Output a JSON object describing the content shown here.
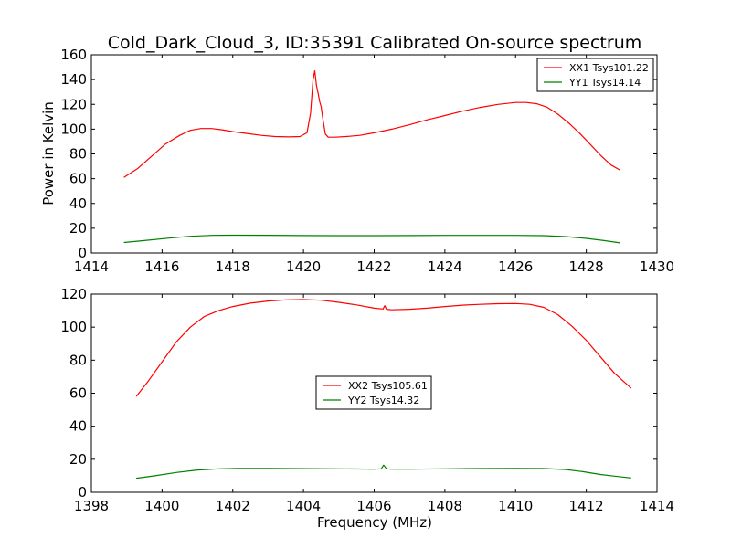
{
  "chart_data": [
    {
      "type": "line",
      "title": "Cold_Dark_Cloud_3, ID:35391 Calibrated On-source spectrum",
      "xlabel": "",
      "ylabel": "Power in Kelvin",
      "xlim": [
        1414,
        1430
      ],
      "ylim": [
        0,
        160
      ],
      "xticks": [
        "1414",
        "1416",
        "1418",
        "1420",
        "1422",
        "1424",
        "1426",
        "1428",
        "1430"
      ],
      "yticks": [
        "0",
        "20",
        "40",
        "60",
        "80",
        "100",
        "120",
        "140",
        "160"
      ],
      "grid": false,
      "legend_position": "upper-right",
      "series": [
        {
          "name": "XX1 Tsys101.22",
          "color": "#ff0000",
          "x": [
            1414.92,
            1415.3,
            1415.7,
            1416.1,
            1416.5,
            1416.8,
            1417.1,
            1417.4,
            1417.7,
            1418.0,
            1418.4,
            1418.8,
            1419.2,
            1419.6,
            1419.9,
            1420.1,
            1420.2,
            1420.27,
            1420.32,
            1420.37,
            1420.42,
            1420.46,
            1420.5,
            1420.55,
            1420.62,
            1420.7,
            1420.9,
            1421.2,
            1421.6,
            1422.0,
            1422.5,
            1423.0,
            1423.5,
            1424.0,
            1424.5,
            1425.0,
            1425.5,
            1426.0,
            1426.3,
            1426.6,
            1426.9,
            1427.2,
            1427.5,
            1427.8,
            1428.1,
            1428.4,
            1428.7,
            1428.95
          ],
          "y": [
            61,
            68,
            78,
            88,
            95,
            99,
            100.5,
            100.5,
            99.5,
            98,
            96.5,
            95,
            94,
            93.7,
            94,
            97,
            113,
            140,
            147,
            135,
            128,
            122,
            118,
            108,
            96,
            93.5,
            93.5,
            94,
            95,
            97,
            100,
            103.5,
            107.5,
            111,
            114.5,
            117.5,
            120,
            121.5,
            121.5,
            120.5,
            117.5,
            112,
            105,
            97,
            88,
            79,
            71,
            67
          ]
        },
        {
          "name": "YY1 Tsys14.14",
          "color": "#008000",
          "x": [
            1414.92,
            1415.5,
            1416.2,
            1416.8,
            1417.4,
            1418.0,
            1419.0,
            1420.0,
            1421.0,
            1422.0,
            1423.0,
            1424.0,
            1425.0,
            1426.0,
            1426.8,
            1427.4,
            1428.0,
            1428.5,
            1428.95
          ],
          "y": [
            8.5,
            10,
            12,
            13.5,
            14.2,
            14.4,
            14.3,
            14.1,
            14,
            14,
            14.1,
            14.2,
            14.2,
            14.2,
            14,
            13.3,
            11.8,
            10,
            8.2
          ]
        }
      ]
    },
    {
      "type": "line",
      "title": "",
      "xlabel": "Frequency (MHz)",
      "ylabel": "",
      "xlim": [
        1398,
        1414
      ],
      "ylim": [
        0,
        120
      ],
      "xticks": [
        "1398",
        "1400",
        "1402",
        "1404",
        "1406",
        "1408",
        "1410",
        "1412",
        "1414"
      ],
      "yticks": [
        "0",
        "20",
        "40",
        "60",
        "80",
        "100",
        "120"
      ],
      "grid": false,
      "legend_position": "center",
      "series": [
        {
          "name": "XX2 Tsys105.61",
          "color": "#ff0000",
          "x": [
            1399.27,
            1399.6,
            1400.0,
            1400.4,
            1400.8,
            1401.2,
            1401.6,
            1402.0,
            1402.5,
            1403.0,
            1403.5,
            1404.0,
            1404.5,
            1405.0,
            1405.5,
            1406.0,
            1406.25,
            1406.3,
            1406.35,
            1406.5,
            1407.0,
            1407.5,
            1408.0,
            1408.5,
            1409.0,
            1409.5,
            1410.0,
            1410.4,
            1410.8,
            1411.2,
            1411.6,
            1412.0,
            1412.4,
            1412.8,
            1413.27
          ],
          "y": [
            58,
            67,
            79,
            91,
            100,
            106.5,
            110,
            112.5,
            114.5,
            115.8,
            116.5,
            116.7,
            116.3,
            115,
            113.5,
            111.5,
            111,
            113,
            110.8,
            110.5,
            110.8,
            111.5,
            112.5,
            113.3,
            113.8,
            114.2,
            114.3,
            113.8,
            112,
            107.5,
            100.5,
            92,
            82,
            72,
            63
          ]
        },
        {
          "name": "YY2 Tsys14.32",
          "color": "#008000",
          "x": [
            1399.27,
            1399.8,
            1400.4,
            1401.0,
            1401.6,
            1402.2,
            1403.0,
            1404.0,
            1405.0,
            1406.0,
            1406.2,
            1406.27,
            1406.35,
            1406.5,
            1407.0,
            1408.0,
            1409.0,
            1410.0,
            1410.8,
            1411.4,
            1411.9,
            1412.4,
            1412.8,
            1413.27
          ],
          "y": [
            8.5,
            10,
            12,
            13.5,
            14.2,
            14.5,
            14.5,
            14.3,
            14.2,
            14,
            14.2,
            16.5,
            14.2,
            14,
            14,
            14.2,
            14.4,
            14.5,
            14.4,
            13.8,
            12.5,
            10.8,
            9.8,
            8.7
          ]
        }
      ]
    }
  ]
}
